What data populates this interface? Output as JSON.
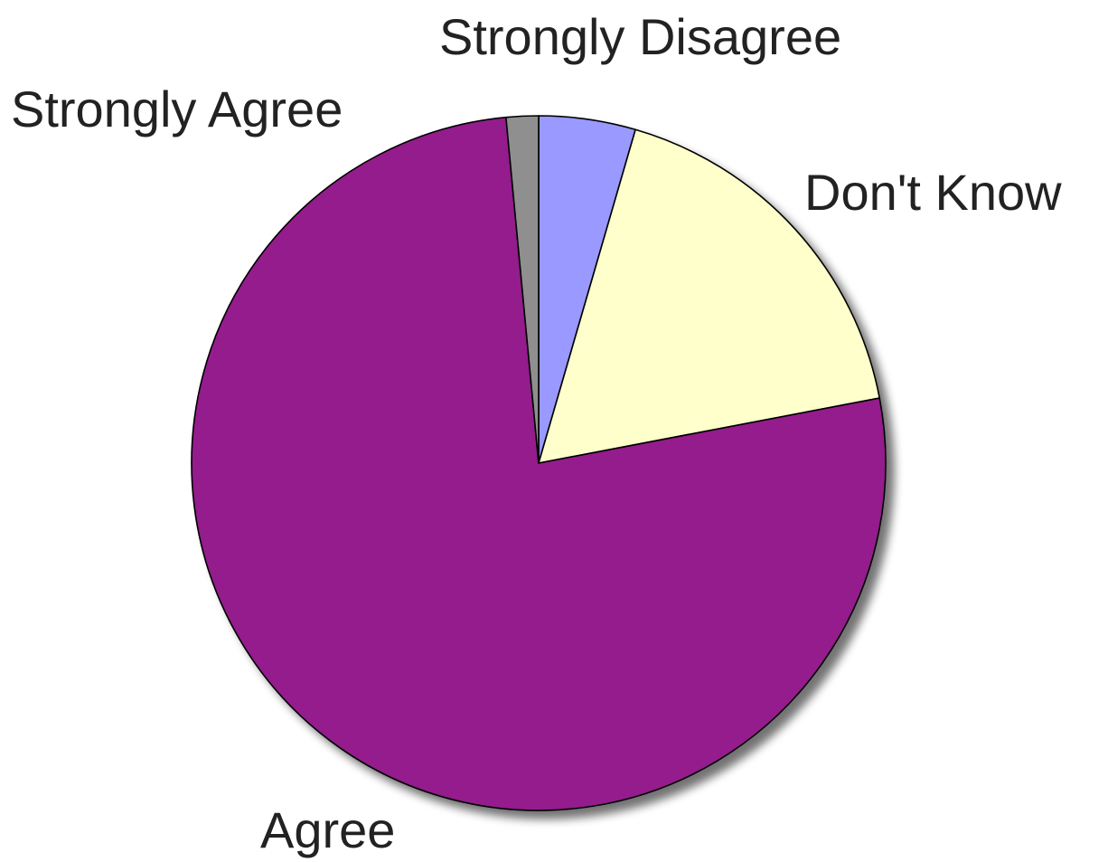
{
  "chart_data": {
    "type": "pie",
    "title": "",
    "start_angle_deg": 0,
    "direction": "clockwise",
    "slices": [
      {
        "label": "Strongly Disagree",
        "value": 4.5,
        "color": "#9999ff"
      },
      {
        "label": "Don't Know",
        "value": 17.5,
        "color": "#ffffcc"
      },
      {
        "label": "Agree",
        "value": 76.5,
        "color": "#941f8c"
      },
      {
        "label": "Strongly Agree",
        "value": 1.5,
        "color": "#8f8f8f"
      }
    ],
    "legend": "none",
    "labels_outside": true
  }
}
